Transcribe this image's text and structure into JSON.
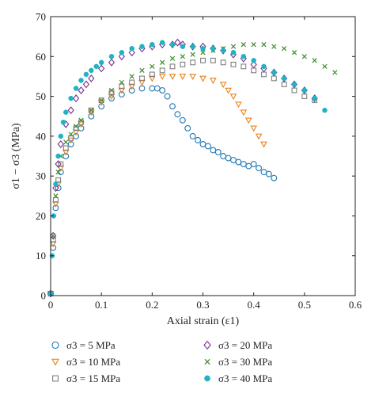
{
  "chart_data": {
    "type": "scatter",
    "title": "",
    "xlabel": "Axial strain (ε1)",
    "ylabel": "σ1 − σ3 (MPa)",
    "xlim": [
      0,
      0.6
    ],
    "ylim": [
      0,
      70
    ],
    "xticks": [
      "0",
      "0.1",
      "0.2",
      "0.3",
      "0.4",
      "0.5",
      "0.6"
    ],
    "yticks": [
      "0",
      "10",
      "20",
      "30",
      "40",
      "50",
      "60",
      "70"
    ],
    "grid": false,
    "legend_position": "bottom",
    "series": [
      {
        "name": "σ3 = 5 MPa",
        "marker": "circle-open",
        "color": "#1f77b4",
        "x": [
          0.0,
          0.005,
          0.01,
          0.015,
          0.02,
          0.03,
          0.04,
          0.05,
          0.06,
          0.08,
          0.1,
          0.12,
          0.14,
          0.16,
          0.18,
          0.2,
          0.21,
          0.22,
          0.23,
          0.24,
          0.25,
          0.26,
          0.27,
          0.28,
          0.29,
          0.3,
          0.31,
          0.32,
          0.33,
          0.34,
          0.35,
          0.36,
          0.37,
          0.38,
          0.39,
          0.4,
          0.41,
          0.42,
          0.43,
          0.44
        ],
        "y": [
          0.5,
          12,
          22,
          27,
          31,
          35,
          38,
          40,
          42,
          45,
          47.5,
          49.5,
          50.5,
          51.5,
          52,
          52,
          52,
          51.5,
          50,
          47.5,
          45.5,
          44,
          42,
          40,
          39,
          38,
          37.5,
          36.5,
          36,
          35,
          34.5,
          34,
          33.5,
          33,
          32.5,
          33,
          32,
          31,
          30.5,
          29.5
        ]
      },
      {
        "name": "σ3 = 10 MPa",
        "marker": "triangle-down-open",
        "color": "#e8821e",
        "x": [
          0.0,
          0.005,
          0.01,
          0.015,
          0.02,
          0.03,
          0.04,
          0.05,
          0.06,
          0.08,
          0.1,
          0.12,
          0.14,
          0.16,
          0.18,
          0.2,
          0.22,
          0.24,
          0.26,
          0.28,
          0.3,
          0.32,
          0.34,
          0.35,
          0.36,
          0.37,
          0.38,
          0.39,
          0.4,
          0.41,
          0.42
        ],
        "y": [
          0.5,
          13,
          23,
          28,
          32,
          36,
          39,
          41,
          43,
          46,
          48.5,
          50,
          51.5,
          52.5,
          53.5,
          54.5,
          55,
          55,
          55,
          55,
          54.5,
          54,
          53,
          51.5,
          50,
          48,
          46,
          44,
          42,
          40,
          38
        ]
      },
      {
        "name": "σ3 = 15 MPa",
        "marker": "square-open",
        "color": "#7f7f7f",
        "x": [
          0.0,
          0.005,
          0.01,
          0.015,
          0.02,
          0.03,
          0.04,
          0.05,
          0.06,
          0.08,
          0.1,
          0.12,
          0.14,
          0.16,
          0.18,
          0.2,
          0.22,
          0.24,
          0.26,
          0.28,
          0.3,
          0.32,
          0.34,
          0.36,
          0.38,
          0.4,
          0.42,
          0.44,
          0.46,
          0.48,
          0.5,
          0.52
        ],
        "y": [
          0.5,
          14,
          24,
          29,
          33,
          37,
          39.5,
          42,
          43.5,
          46.5,
          49,
          51,
          52.5,
          53.5,
          54.5,
          55.5,
          56.5,
          57.5,
          58,
          58.5,
          59,
          59,
          58.5,
          58,
          57.5,
          56.5,
          55.5,
          54.5,
          53,
          51.5,
          50,
          49
        ]
      },
      {
        "name": "σ3 = 20 MPa",
        "marker": "diamond-open",
        "color": "#7b2d8e",
        "x": [
          0.0,
          0.005,
          0.01,
          0.015,
          0.02,
          0.03,
          0.04,
          0.05,
          0.06,
          0.07,
          0.08,
          0.1,
          0.12,
          0.14,
          0.16,
          0.18,
          0.2,
          0.22,
          0.24,
          0.25,
          0.26,
          0.28,
          0.3,
          0.32,
          0.34,
          0.36,
          0.38,
          0.4,
          0.42,
          0.44,
          0.46,
          0.48,
          0.5,
          0.52
        ],
        "y": [
          0.5,
          15,
          27,
          33,
          38,
          43,
          46.5,
          49.5,
          51.5,
          53,
          54.5,
          57,
          58.5,
          60,
          61,
          62,
          62.5,
          63,
          63,
          63.5,
          63,
          62.5,
          62.5,
          62,
          61.5,
          60.5,
          59.5,
          58,
          57,
          56,
          54.5,
          53,
          51.5,
          49.5
        ]
      },
      {
        "name": "σ3 = 30 MPa",
        "marker": "x",
        "color": "#3a8c2a",
        "x": [
          0.0,
          0.005,
          0.01,
          0.015,
          0.02,
          0.03,
          0.04,
          0.05,
          0.06,
          0.08,
          0.1,
          0.12,
          0.14,
          0.16,
          0.18,
          0.2,
          0.22,
          0.24,
          0.26,
          0.28,
          0.3,
          0.32,
          0.34,
          0.36,
          0.38,
          0.4,
          0.42,
          0.44,
          0.46,
          0.48,
          0.5,
          0.52,
          0.54,
          0.56
        ],
        "y": [
          0.5,
          15,
          25,
          31,
          35,
          38.5,
          40.5,
          42.5,
          44,
          46.5,
          49,
          51.5,
          53.5,
          55,
          56.5,
          57.5,
          58.5,
          59.5,
          60,
          60.5,
          61,
          61.5,
          62,
          62.5,
          63,
          63,
          63,
          62.5,
          62,
          61,
          60,
          59,
          57.5,
          56
        ]
      },
      {
        "name": "σ3 = 40 MPa",
        "marker": "circle-filled",
        "color": "#1fb3c4",
        "x": [
          0.0,
          0.003,
          0.006,
          0.01,
          0.015,
          0.02,
          0.025,
          0.03,
          0.04,
          0.05,
          0.06,
          0.07,
          0.08,
          0.09,
          0.1,
          0.12,
          0.14,
          0.16,
          0.18,
          0.2,
          0.22,
          0.24,
          0.26,
          0.28,
          0.3,
          0.32,
          0.34,
          0.36,
          0.38,
          0.4,
          0.42,
          0.44,
          0.46,
          0.48,
          0.5,
          0.52,
          0.54
        ],
        "y": [
          0.5,
          10,
          20,
          28,
          35,
          40,
          43.5,
          46,
          49.5,
          52,
          54,
          55.5,
          56.5,
          57.5,
          58.5,
          60,
          61,
          62,
          62.5,
          63,
          63.5,
          63,
          62.5,
          62.5,
          62,
          62,
          61.5,
          61,
          60,
          59,
          57.5,
          56,
          54.5,
          53,
          51.5,
          49.5,
          46.5
        ]
      }
    ]
  }
}
